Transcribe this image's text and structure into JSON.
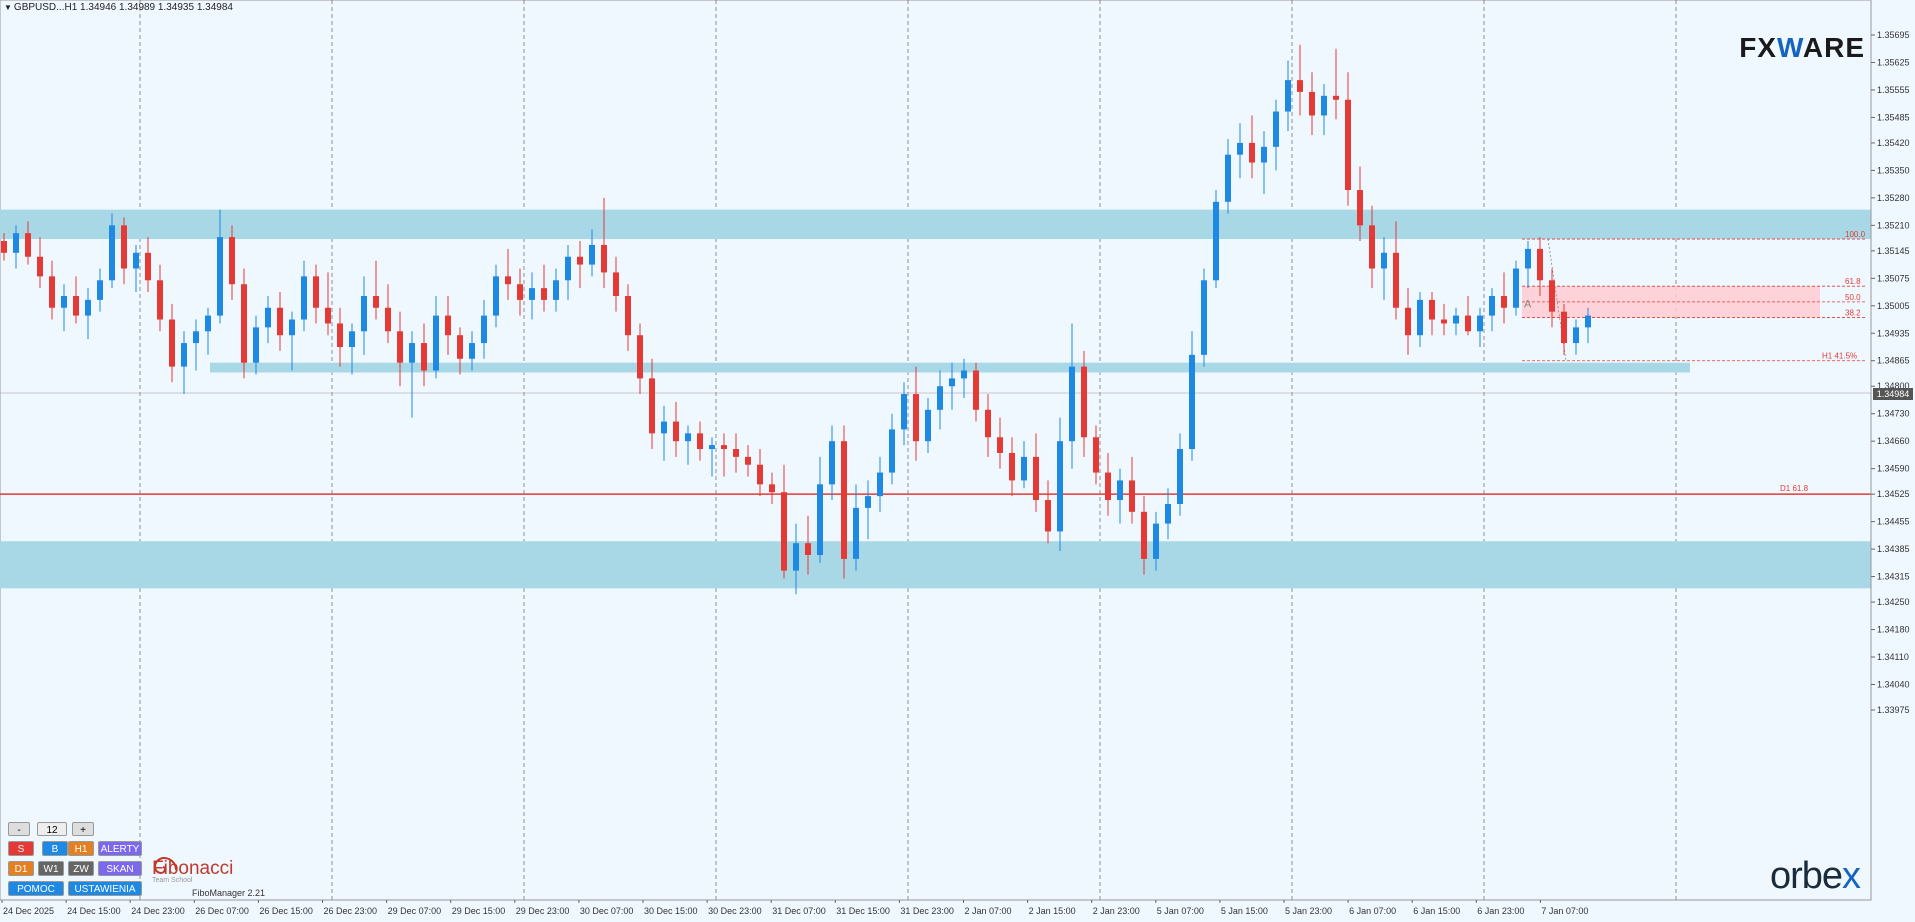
{
  "window": {
    "title": "GBPUSD...H1  1.34946 1.34989 1.34935 1.34984"
  },
  "logos": {
    "fxware": {
      "part1": "FX",
      "part2": "W",
      "part3": "ARE"
    },
    "orbex": {
      "part1": "orbe",
      "part2": "x"
    }
  },
  "colors": {
    "bull": "#1e88e5",
    "bear": "#e53935",
    "zone": "#a8d8e6",
    "fib_zone": "#ffcdd2",
    "level_line": "#e53935",
    "background": "#f0f8ff"
  },
  "price": {
    "current": "1.34984",
    "axis_labels": [
      "1.35695",
      "1.35625",
      "1.35555",
      "1.35485",
      "1.35420",
      "1.35350",
      "1.35280",
      "1.35210",
      "1.35145",
      "1.35075",
      "1.35005",
      "1.34935",
      "1.34865",
      "1.34800",
      "1.34730",
      "1.34660",
      "1.34590",
      "1.34525",
      "1.34455",
      "1.34385",
      "1.34315",
      "1.34250",
      "1.34180",
      "1.34110",
      "1.34040",
      "1.33975"
    ]
  },
  "time_axis": [
    "24 Dec 2025",
    "24 Dec 15:00",
    "24 Dec 23:00",
    "26 Dec 07:00",
    "26 Dec 15:00",
    "26 Dec 23:00",
    "29 Dec 07:00",
    "29 Dec 15:00",
    "29 Dec 23:00",
    "30 Dec 07:00",
    "30 Dec 15:00",
    "30 Dec 23:00",
    "31 Dec 07:00",
    "31 Dec 15:00",
    "31 Dec 23:00",
    "2 Jan 07:00",
    "2 Jan 15:00",
    "2 Jan 23:00",
    "5 Jan 07:00",
    "5 Jan 15:00",
    "5 Jan 23:00",
    "6 Jan 07:00",
    "6 Jan 15:00",
    "6 Jan 23:00",
    "7 Jan 07:00"
  ],
  "levels": [
    {
      "label": "D1 61.8",
      "price": 1.34525
    },
    {
      "label": "100.0",
      "price": 1.35175
    },
    {
      "label": "61.8",
      "price": 1.35055
    },
    {
      "label": "50.0",
      "price": 1.35015
    },
    {
      "label": "38.2",
      "price": 1.34975
    },
    {
      "label": "H1 41.5%",
      "price": 1.34865
    }
  ],
  "marker_label": "A",
  "zones": [
    {
      "from": 1.35175,
      "to": 1.3525
    },
    {
      "from": 1.34835,
      "to": 1.3486
    },
    {
      "from": 1.34285,
      "to": 1.34405
    }
  ],
  "fib_zone": {
    "from": 1.34975,
    "to": 1.35055
  },
  "panel": {
    "minus": "-",
    "count": "12",
    "plus": "+",
    "s": "S",
    "b": "B",
    "h1": "H1",
    "alerty": "ALERTY",
    "d1": "D1",
    "w1": "W1",
    "zw": "ZW",
    "skan": "SKAN",
    "pomoc": "POMOC",
    "ustawienia": "USTAWIENIA"
  },
  "fibo_brand": {
    "name": "Fibonacci",
    "sub": "Team School",
    "version": "FiboManager 2.21"
  },
  "chart_data": {
    "type": "candlestick",
    "candles": [
      [
        1.3517,
        1.3519,
        1.3512,
        1.3514
      ],
      [
        1.3514,
        1.3521,
        1.351,
        1.3519
      ],
      [
        1.3519,
        1.3522,
        1.3511,
        1.3513
      ],
      [
        1.3513,
        1.3518,
        1.3505,
        1.3508
      ],
      [
        1.3508,
        1.3512,
        1.3497,
        1.35
      ],
      [
        1.35,
        1.3506,
        1.3494,
        1.3503
      ],
      [
        1.3503,
        1.3508,
        1.3496,
        1.3498
      ],
      [
        1.3498,
        1.3505,
        1.3492,
        1.3502
      ],
      [
        1.3502,
        1.351,
        1.3499,
        1.3507
      ],
      [
        1.3507,
        1.3524,
        1.3505,
        1.3521
      ],
      [
        1.3521,
        1.3523,
        1.3506,
        1.351
      ],
      [
        1.351,
        1.3516,
        1.3504,
        1.3514
      ],
      [
        1.3514,
        1.3518,
        1.3504,
        1.3507
      ],
      [
        1.3507,
        1.3511,
        1.3494,
        1.3497
      ],
      [
        1.3497,
        1.3501,
        1.3481,
        1.3485
      ],
      [
        1.3485,
        1.3494,
        1.3478,
        1.3491
      ],
      [
        1.3491,
        1.3497,
        1.3484,
        1.3494
      ],
      [
        1.3494,
        1.35,
        1.3488,
        1.3498
      ],
      [
        1.3498,
        1.3525,
        1.3496,
        1.3518
      ],
      [
        1.3518,
        1.3521,
        1.3502,
        1.3506
      ],
      [
        1.3506,
        1.351,
        1.3482,
        1.3486
      ],
      [
        1.3486,
        1.3498,
        1.3483,
        1.3495
      ],
      [
        1.3495,
        1.3503,
        1.3491,
        1.35
      ],
      [
        1.35,
        1.3504,
        1.3489,
        1.3493
      ],
      [
        1.3493,
        1.3499,
        1.3484,
        1.3497
      ],
      [
        1.3497,
        1.3512,
        1.3494,
        1.3508
      ],
      [
        1.3508,
        1.3511,
        1.3496,
        1.35
      ],
      [
        1.35,
        1.3509,
        1.3493,
        1.3496
      ],
      [
        1.3496,
        1.35,
        1.3485,
        1.349
      ],
      [
        1.349,
        1.3496,
        1.3483,
        1.3494
      ],
      [
        1.3494,
        1.3508,
        1.3488,
        1.3503
      ],
      [
        1.3503,
        1.3512,
        1.3497,
        1.35
      ],
      [
        1.35,
        1.3506,
        1.3491,
        1.3494
      ],
      [
        1.3494,
        1.3499,
        1.348,
        1.3486
      ],
      [
        1.3486,
        1.3494,
        1.3472,
        1.3491
      ],
      [
        1.3491,
        1.3496,
        1.348,
        1.3484
      ],
      [
        1.3484,
        1.3503,
        1.3482,
        1.3498
      ],
      [
        1.3498,
        1.3503,
        1.3488,
        1.3493
      ],
      [
        1.3493,
        1.3495,
        1.3483,
        1.3487
      ],
      [
        1.3487,
        1.3494,
        1.3484,
        1.3491
      ],
      [
        1.3491,
        1.3502,
        1.3487,
        1.3498
      ],
      [
        1.3498,
        1.3511,
        1.3495,
        1.3508
      ],
      [
        1.3508,
        1.3515,
        1.3502,
        1.3506
      ],
      [
        1.3506,
        1.351,
        1.3498,
        1.3502
      ],
      [
        1.3502,
        1.3509,
        1.3497,
        1.3505
      ],
      [
        1.3505,
        1.3511,
        1.3499,
        1.3502
      ],
      [
        1.3502,
        1.351,
        1.3499,
        1.3507
      ],
      [
        1.3507,
        1.3516,
        1.3502,
        1.3513
      ],
      [
        1.3513,
        1.3517,
        1.3505,
        1.3511
      ],
      [
        1.3511,
        1.352,
        1.3508,
        1.3516
      ],
      [
        1.3516,
        1.3528,
        1.3505,
        1.3509
      ],
      [
        1.3509,
        1.3513,
        1.3499,
        1.3503
      ],
      [
        1.3503,
        1.3506,
        1.3489,
        1.3493
      ],
      [
        1.3493,
        1.3496,
        1.3478,
        1.3482
      ],
      [
        1.3482,
        1.3487,
        1.3464,
        1.3468
      ],
      [
        1.3468,
        1.3475,
        1.3461,
        1.3471
      ],
      [
        1.3471,
        1.3476,
        1.3462,
        1.3466
      ],
      [
        1.3466,
        1.347,
        1.346,
        1.3468
      ],
      [
        1.3468,
        1.3471,
        1.3461,
        1.3464
      ],
      [
        1.3464,
        1.3467,
        1.3457,
        1.3465
      ],
      [
        1.3465,
        1.3468,
        1.3457,
        1.3464
      ],
      [
        1.3464,
        1.3468,
        1.3458,
        1.3462
      ],
      [
        1.3462,
        1.3465,
        1.3457,
        1.346
      ],
      [
        1.346,
        1.3464,
        1.3452,
        1.3455
      ],
      [
        1.3455,
        1.3458,
        1.345,
        1.3453
      ],
      [
        1.3453,
        1.346,
        1.3431,
        1.3433
      ],
      [
        1.3433,
        1.3445,
        1.3427,
        1.344
      ],
      [
        1.344,
        1.3447,
        1.3432,
        1.3437
      ],
      [
        1.3437,
        1.3462,
        1.3435,
        1.3455
      ],
      [
        1.3455,
        1.347,
        1.3451,
        1.3466
      ],
      [
        1.3466,
        1.347,
        1.3431,
        1.3436
      ],
      [
        1.3436,
        1.3455,
        1.3433,
        1.3449
      ],
      [
        1.3449,
        1.3456,
        1.3441,
        1.3452
      ],
      [
        1.3452,
        1.3462,
        1.3448,
        1.3458
      ],
      [
        1.3458,
        1.3473,
        1.3455,
        1.3469
      ],
      [
        1.3469,
        1.3481,
        1.3465,
        1.3478
      ],
      [
        1.3478,
        1.3485,
        1.3461,
        1.3466
      ],
      [
        1.3466,
        1.3477,
        1.3463,
        1.3474
      ],
      [
        1.3474,
        1.3484,
        1.3469,
        1.348
      ],
      [
        1.348,
        1.3486,
        1.3474,
        1.3482
      ],
      [
        1.3482,
        1.3487,
        1.3477,
        1.3484
      ],
      [
        1.3484,
        1.3486,
        1.3471,
        1.3474
      ],
      [
        1.3474,
        1.3478,
        1.3462,
        1.3467
      ],
      [
        1.3467,
        1.3472,
        1.3459,
        1.3463
      ],
      [
        1.3463,
        1.3467,
        1.3452,
        1.3456
      ],
      [
        1.3456,
        1.3466,
        1.3454,
        1.3462
      ],
      [
        1.3462,
        1.3468,
        1.3448,
        1.3451
      ],
      [
        1.3451,
        1.3456,
        1.344,
        1.3443
      ],
      [
        1.3443,
        1.3472,
        1.3438,
        1.3466
      ],
      [
        1.3466,
        1.3496,
        1.3459,
        1.3485
      ],
      [
        1.3485,
        1.3489,
        1.3462,
        1.3467
      ],
      [
        1.3467,
        1.347,
        1.3455,
        1.3458
      ],
      [
        1.3458,
        1.3463,
        1.3447,
        1.3451
      ],
      [
        1.3451,
        1.3459,
        1.3445,
        1.3456
      ],
      [
        1.3456,
        1.3462,
        1.3445,
        1.3448
      ],
      [
        1.3448,
        1.3452,
        1.3432,
        1.3436
      ],
      [
        1.3436,
        1.3448,
        1.3433,
        1.3445
      ],
      [
        1.3445,
        1.3454,
        1.3441,
        1.345
      ],
      [
        1.345,
        1.3468,
        1.3447,
        1.3464
      ],
      [
        1.3464,
        1.3494,
        1.3461,
        1.3488
      ],
      [
        1.3488,
        1.351,
        1.3485,
        1.3507
      ],
      [
        1.3507,
        1.353,
        1.3505,
        1.3527
      ],
      [
        1.3527,
        1.3543,
        1.3524,
        1.3539
      ],
      [
        1.3539,
        1.3547,
        1.3533,
        1.3542
      ],
      [
        1.3542,
        1.3549,
        1.3533,
        1.3537
      ],
      [
        1.3537,
        1.3545,
        1.3529,
        1.3541
      ],
      [
        1.3541,
        1.3553,
        1.3535,
        1.355
      ],
      [
        1.355,
        1.3563,
        1.3545,
        1.3558
      ],
      [
        1.3558,
        1.3567,
        1.3549,
        1.3555
      ],
      [
        1.3555,
        1.356,
        1.3544,
        1.3549
      ],
      [
        1.3549,
        1.3557,
        1.3544,
        1.3554
      ],
      [
        1.3554,
        1.3566,
        1.3548,
        1.3553
      ],
      [
        1.3553,
        1.356,
        1.3526,
        1.353
      ],
      [
        1.353,
        1.3536,
        1.3517,
        1.3521
      ],
      [
        1.3521,
        1.3526,
        1.3505,
        1.351
      ],
      [
        1.351,
        1.3518,
        1.3502,
        1.3514
      ],
      [
        1.3514,
        1.3522,
        1.3497,
        1.35
      ],
      [
        1.35,
        1.3505,
        1.3488,
        1.3493
      ],
      [
        1.3493,
        1.3504,
        1.349,
        1.3502
      ],
      [
        1.3502,
        1.3504,
        1.3493,
        1.3497
      ],
      [
        1.3497,
        1.3501,
        1.3493,
        1.3496
      ],
      [
        1.3496,
        1.35,
        1.3493,
        1.3498
      ],
      [
        1.3498,
        1.3503,
        1.3493,
        1.3494
      ],
      [
        1.3494,
        1.35,
        1.349,
        1.3498
      ],
      [
        1.3498,
        1.3505,
        1.3494,
        1.3503
      ],
      [
        1.3503,
        1.3509,
        1.3496,
        1.35
      ],
      [
        1.35,
        1.3512,
        1.3498,
        1.351
      ],
      [
        1.351,
        1.3517,
        1.3505,
        1.3515
      ],
      [
        1.3515,
        1.3518,
        1.3503,
        1.3507
      ],
      [
        1.3507,
        1.351,
        1.3495,
        1.3499
      ],
      [
        1.3499,
        1.3501,
        1.3488,
        1.3491
      ],
      [
        1.3491,
        1.3497,
        1.3488,
        1.3495
      ],
      [
        1.3495,
        1.35,
        1.3491,
        1.3498
      ]
    ]
  }
}
